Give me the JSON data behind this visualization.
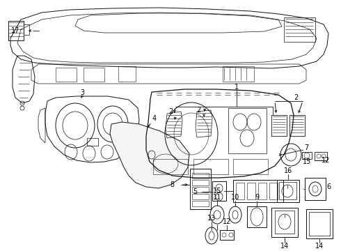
{
  "bg_color": "#ffffff",
  "line_color": "#111111",
  "label_color": "#000000",
  "fig_width": 4.9,
  "fig_height": 3.6,
  "dpi": 100,
  "label_fontsize": 7.0
}
